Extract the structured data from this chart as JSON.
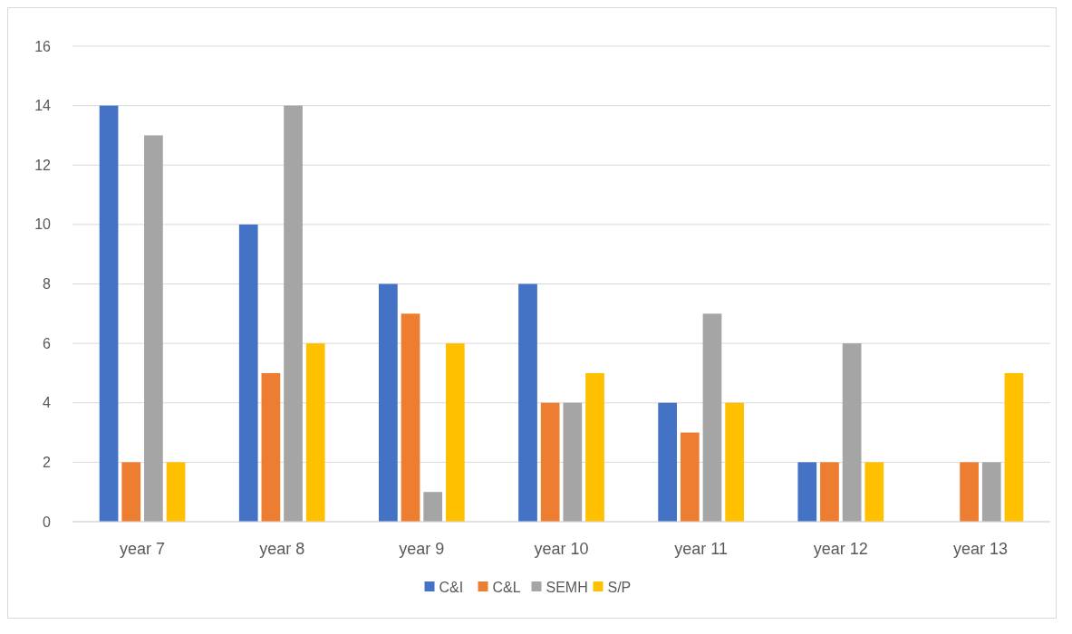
{
  "chart_data": {
    "type": "bar",
    "categories": [
      "year 7",
      "year 8",
      "year 9",
      "year 10",
      "year 11",
      "year 12",
      "year 13"
    ],
    "series": [
      {
        "name": "C&I",
        "color": "#4472c4",
        "values": [
          14,
          10,
          8,
          8,
          4,
          2,
          0
        ]
      },
      {
        "name": "C&L",
        "color": "#ed7d31",
        "values": [
          2,
          5,
          7,
          4,
          3,
          2,
          2
        ]
      },
      {
        "name": "SEMH",
        "color": "#a5a5a5",
        "values": [
          13,
          14,
          1,
          4,
          7,
          6,
          2
        ]
      },
      {
        "name": "S/P",
        "color": "#ffc000",
        "values": [
          2,
          6,
          6,
          5,
          4,
          2,
          5
        ]
      }
    ],
    "ylim": [
      0,
      16
    ],
    "yticks": [
      0,
      2,
      4,
      6,
      8,
      10,
      12,
      14,
      16
    ],
    "grid": "y",
    "legend": "bottom"
  }
}
